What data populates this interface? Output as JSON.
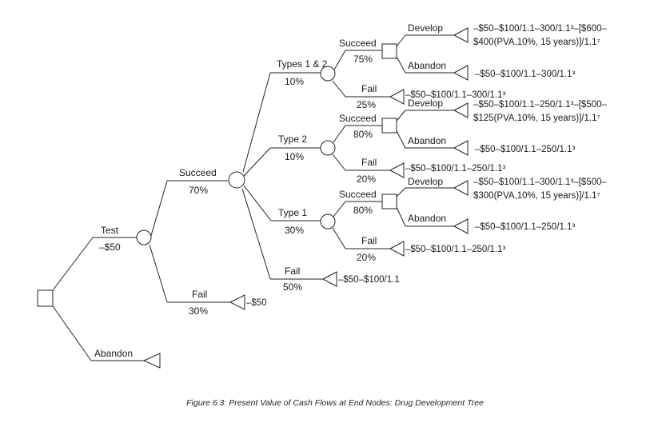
{
  "tree": {
    "root": {
      "decision": "Test",
      "cost": "–$50",
      "alternative": "Abandon"
    },
    "level1": {
      "succeed": {
        "label": "Succeed",
        "prob": "70%"
      },
      "fail": {
        "label": "Fail",
        "prob": "30%",
        "payoff": "–$50"
      }
    },
    "branches": [
      {
        "label": "Types 1 & 2",
        "prob": "10%",
        "succeed": {
          "label": "Succeed",
          "prob": "75%"
        },
        "fail": {
          "label": "Fail",
          "prob": "25%",
          "payoff": "–$50–$100/1.1–300/1.1³"
        },
        "develop": {
          "label": "Develop",
          "payoff_1": "–$50–$100/1.1–300/1.1³–[$600–",
          "payoff_2": "$400(PVA,10%, 15 years)]/1.1⁷"
        },
        "abandon": {
          "label": "Abandon",
          "payoff": "–$50–$100/1.1–300/1.1³"
        }
      },
      {
        "label": "Type 2",
        "prob": "10%",
        "succeed": {
          "label": "Succeed",
          "prob": "80%"
        },
        "fail": {
          "label": "Fail",
          "prob": "20%",
          "payoff": "–$50–$100/1.1–250/1.1³"
        },
        "develop": {
          "label": "Develop",
          "payoff_1": "–$50–$100/1.1–250/1.1³–[$500–",
          "payoff_2": "$125(PVA,10%, 15 years)]/1.1⁷"
        },
        "abandon": {
          "label": "Abandon",
          "payoff": "–$50–$100/1.1–250/1.1³"
        }
      },
      {
        "label": "Type 1",
        "prob": "30%",
        "succeed": {
          "label": "Succeed",
          "prob": "80%"
        },
        "fail": {
          "label": "Fail",
          "prob": "20%",
          "payoff": "–$50–$100/1.1–250/1.1³"
        },
        "develop": {
          "label": "Develop",
          "payoff_1": "–$50–$100/1.1–300/1.1³–[$500–",
          "payoff_2": "$300(PVA,10%, 15 years)]/1.1⁷"
        },
        "abandon": {
          "label": "Abandon",
          "payoff": "–$50–$100/1.1–250/1.1³"
        }
      },
      {
        "label": "Fail",
        "prob": "50%",
        "payoff": "–$50–$100/1.1"
      }
    ]
  },
  "caption": "Figure 6.3: Present Value of Cash Flows at End Nodes: Drug Development Tree"
}
